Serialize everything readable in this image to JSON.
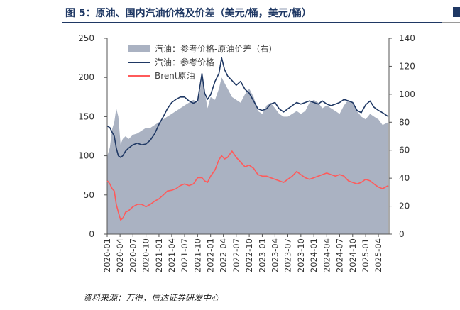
{
  "figure": {
    "title": "图 5：原油、国内汽油价格及价差（美元/桶，美元/桶）",
    "source": "资料来源：万得，信达证券研发中心"
  },
  "colors": {
    "title": "#1f3864",
    "spread_area": "#aab2c2",
    "gasoline_line": "#1f3864",
    "brent_line": "#ff5a5a"
  },
  "chart_data": {
    "type": "area",
    "x_ticks": [
      "2020-01",
      "2020-04",
      "2020-07",
      "2020-10",
      "2021-01",
      "2021-04",
      "2021-07",
      "2021-10",
      "2022-01",
      "2022-04",
      "2022-07",
      "2022-10",
      "2023-01",
      "2023-04",
      "2023-07",
      "2023-10",
      "2024-01",
      "2024-04",
      "2024-07",
      "2024-10",
      "2025-01",
      "2025-04"
    ],
    "y_left": {
      "ticks": [
        0,
        50,
        100,
        150,
        200,
        250
      ],
      "ylim": [
        0,
        250
      ]
    },
    "y_right": {
      "ticks": [
        0,
        20,
        40,
        60,
        80,
        100,
        120,
        140
      ],
      "ylim": [
        0,
        140
      ]
    },
    "legend_position": "top",
    "series": [
      {
        "name": "汽油：参考价格-原油价差（右）",
        "axis": "right",
        "type": "area",
        "x": [
          "2020-01-02",
          "2020-01-20",
          "2020-02-05",
          "2020-02-20",
          "2020-03-05",
          "2020-03-20",
          "2020-04-05",
          "2020-04-20",
          "2020-05-10",
          "2020-06-01",
          "2020-07-01",
          "2020-08-01",
          "2020-09-01",
          "2020-10-01",
          "2020-11-01",
          "2020-12-01",
          "2021-01-01",
          "2021-02-01",
          "2021-03-01",
          "2021-04-01",
          "2021-05-01",
          "2021-06-01",
          "2021-07-01",
          "2021-08-01",
          "2021-09-01",
          "2021-10-01",
          "2021-11-01",
          "2021-11-20",
          "2021-12-10",
          "2022-01-01",
          "2022-02-01",
          "2022-03-01",
          "2022-03-20",
          "2022-04-10",
          "2022-05-01",
          "2022-06-01",
          "2022-07-01",
          "2022-08-01",
          "2022-09-01",
          "2022-10-01",
          "2022-11-01",
          "2022-12-01",
          "2023-01-01",
          "2023-02-01",
          "2023-03-01",
          "2023-04-01",
          "2023-05-01",
          "2023-06-01",
          "2023-07-01",
          "2023-08-01",
          "2023-09-01",
          "2023-10-01",
          "2023-11-01",
          "2023-12-01",
          "2024-01-01",
          "2024-02-01",
          "2024-03-01",
          "2024-04-01",
          "2024-05-01",
          "2024-06-01",
          "2024-07-01",
          "2024-08-01",
          "2024-09-01",
          "2024-10-01",
          "2024-11-01",
          "2024-12-01",
          "2025-01-01",
          "2025-02-01",
          "2025-03-01",
          "2025-04-01",
          "2025-05-01",
          "2025-06-10"
        ],
        "values": [
          56,
          62,
          75,
          80,
          90,
          84,
          64,
          68,
          70,
          68,
          71,
          72,
          74,
          76,
          76,
          78,
          80,
          82,
          84,
          86,
          88,
          90,
          92,
          94,
          96,
          94,
          110,
          102,
          90,
          98,
          96,
          104,
          112,
          108,
          104,
          98,
          96,
          94,
          100,
          104,
          98,
          88,
          86,
          92,
          94,
          90,
          86,
          84,
          84,
          86,
          88,
          86,
          88,
          94,
          96,
          94,
          90,
          92,
          90,
          88,
          86,
          92,
          96,
          94,
          88,
          84,
          82,
          86,
          84,
          82,
          78,
          80
        ]
      },
      {
        "name": "汽油：参考价格",
        "axis": "left",
        "type": "line",
        "x": [
          "2020-01-02",
          "2020-01-20",
          "2020-02-05",
          "2020-02-20",
          "2020-03-05",
          "2020-03-20",
          "2020-04-05",
          "2020-04-20",
          "2020-05-10",
          "2020-06-01",
          "2020-07-01",
          "2020-08-01",
          "2020-09-01",
          "2020-10-01",
          "2020-11-01",
          "2020-12-01",
          "2021-01-01",
          "2021-02-01",
          "2021-03-01",
          "2021-04-01",
          "2021-05-01",
          "2021-06-01",
          "2021-07-01",
          "2021-08-01",
          "2021-09-01",
          "2021-10-01",
          "2021-11-01",
          "2021-11-20",
          "2021-12-10",
          "2022-01-01",
          "2022-02-01",
          "2022-03-01",
          "2022-03-20",
          "2022-04-10",
          "2022-05-01",
          "2022-06-01",
          "2022-07-01",
          "2022-08-01",
          "2022-09-01",
          "2022-10-01",
          "2022-11-01",
          "2022-12-01",
          "2023-01-01",
          "2023-02-01",
          "2023-03-01",
          "2023-04-01",
          "2023-05-01",
          "2023-06-01",
          "2023-07-01",
          "2023-08-01",
          "2023-09-01",
          "2023-10-01",
          "2023-11-01",
          "2023-12-01",
          "2024-01-01",
          "2024-02-01",
          "2024-03-01",
          "2024-04-01",
          "2024-05-01",
          "2024-06-01",
          "2024-07-01",
          "2024-08-01",
          "2024-09-01",
          "2024-10-01",
          "2024-11-01",
          "2024-12-01",
          "2025-01-01",
          "2025-02-01",
          "2025-03-01",
          "2025-04-01",
          "2025-05-01",
          "2025-06-10"
        ],
        "values": [
          138,
          136,
          130,
          125,
          110,
          100,
          98,
          100,
          106,
          110,
          114,
          116,
          114,
          115,
          120,
          128,
          140,
          150,
          160,
          168,
          172,
          175,
          175,
          170,
          167,
          170,
          205,
          180,
          172,
          178,
          195,
          205,
          225,
          210,
          202,
          196,
          190,
          195,
          185,
          180,
          170,
          160,
          158,
          160,
          166,
          168,
          160,
          156,
          160,
          164,
          168,
          166,
          168,
          170,
          168,
          166,
          170,
          166,
          164,
          166,
          168,
          172,
          170,
          168,
          158,
          155,
          165,
          170,
          162,
          158,
          155,
          150
        ]
      },
      {
        "name": "Brent原油",
        "axis": "left",
        "type": "line",
        "x": [
          "2020-01-02",
          "2020-01-20",
          "2020-02-05",
          "2020-02-20",
          "2020-03-05",
          "2020-03-20",
          "2020-04-05",
          "2020-04-20",
          "2020-05-10",
          "2020-06-01",
          "2020-07-01",
          "2020-08-01",
          "2020-09-01",
          "2020-10-01",
          "2020-11-01",
          "2020-12-01",
          "2021-01-01",
          "2021-02-01",
          "2021-03-01",
          "2021-04-01",
          "2021-05-01",
          "2021-06-01",
          "2021-07-01",
          "2021-08-01",
          "2021-09-01",
          "2021-10-01",
          "2021-11-01",
          "2021-11-20",
          "2021-12-10",
          "2022-01-01",
          "2022-02-01",
          "2022-03-01",
          "2022-03-20",
          "2022-04-10",
          "2022-05-01",
          "2022-06-01",
          "2022-07-01",
          "2022-08-01",
          "2022-09-01",
          "2022-10-01",
          "2022-11-01",
          "2022-12-01",
          "2023-01-01",
          "2023-02-01",
          "2023-03-01",
          "2023-04-01",
          "2023-05-01",
          "2023-06-01",
          "2023-07-01",
          "2023-08-01",
          "2023-09-01",
          "2023-10-01",
          "2023-11-01",
          "2023-12-01",
          "2024-01-01",
          "2024-02-01",
          "2024-03-01",
          "2024-04-01",
          "2024-05-01",
          "2024-06-01",
          "2024-07-01",
          "2024-08-01",
          "2024-09-01",
          "2024-10-01",
          "2024-11-01",
          "2024-12-01",
          "2025-01-01",
          "2025-02-01",
          "2025-03-01",
          "2025-04-01",
          "2025-05-01",
          "2025-06-10"
        ],
        "values": [
          68,
          64,
          58,
          55,
          38,
          28,
          18,
          20,
          28,
          30,
          35,
          38,
          38,
          35,
          38,
          42,
          45,
          50,
          55,
          56,
          58,
          62,
          64,
          62,
          64,
          72,
          72,
          68,
          66,
          74,
          82,
          95,
          100,
          96,
          98,
          106,
          98,
          92,
          86,
          88,
          84,
          76,
          74,
          74,
          72,
          70,
          68,
          66,
          70,
          74,
          80,
          76,
          72,
          70,
          72,
          74,
          76,
          78,
          76,
          74,
          76,
          74,
          68,
          66,
          64,
          66,
          70,
          68,
          64,
          60,
          58,
          62
        ]
      }
    ]
  }
}
